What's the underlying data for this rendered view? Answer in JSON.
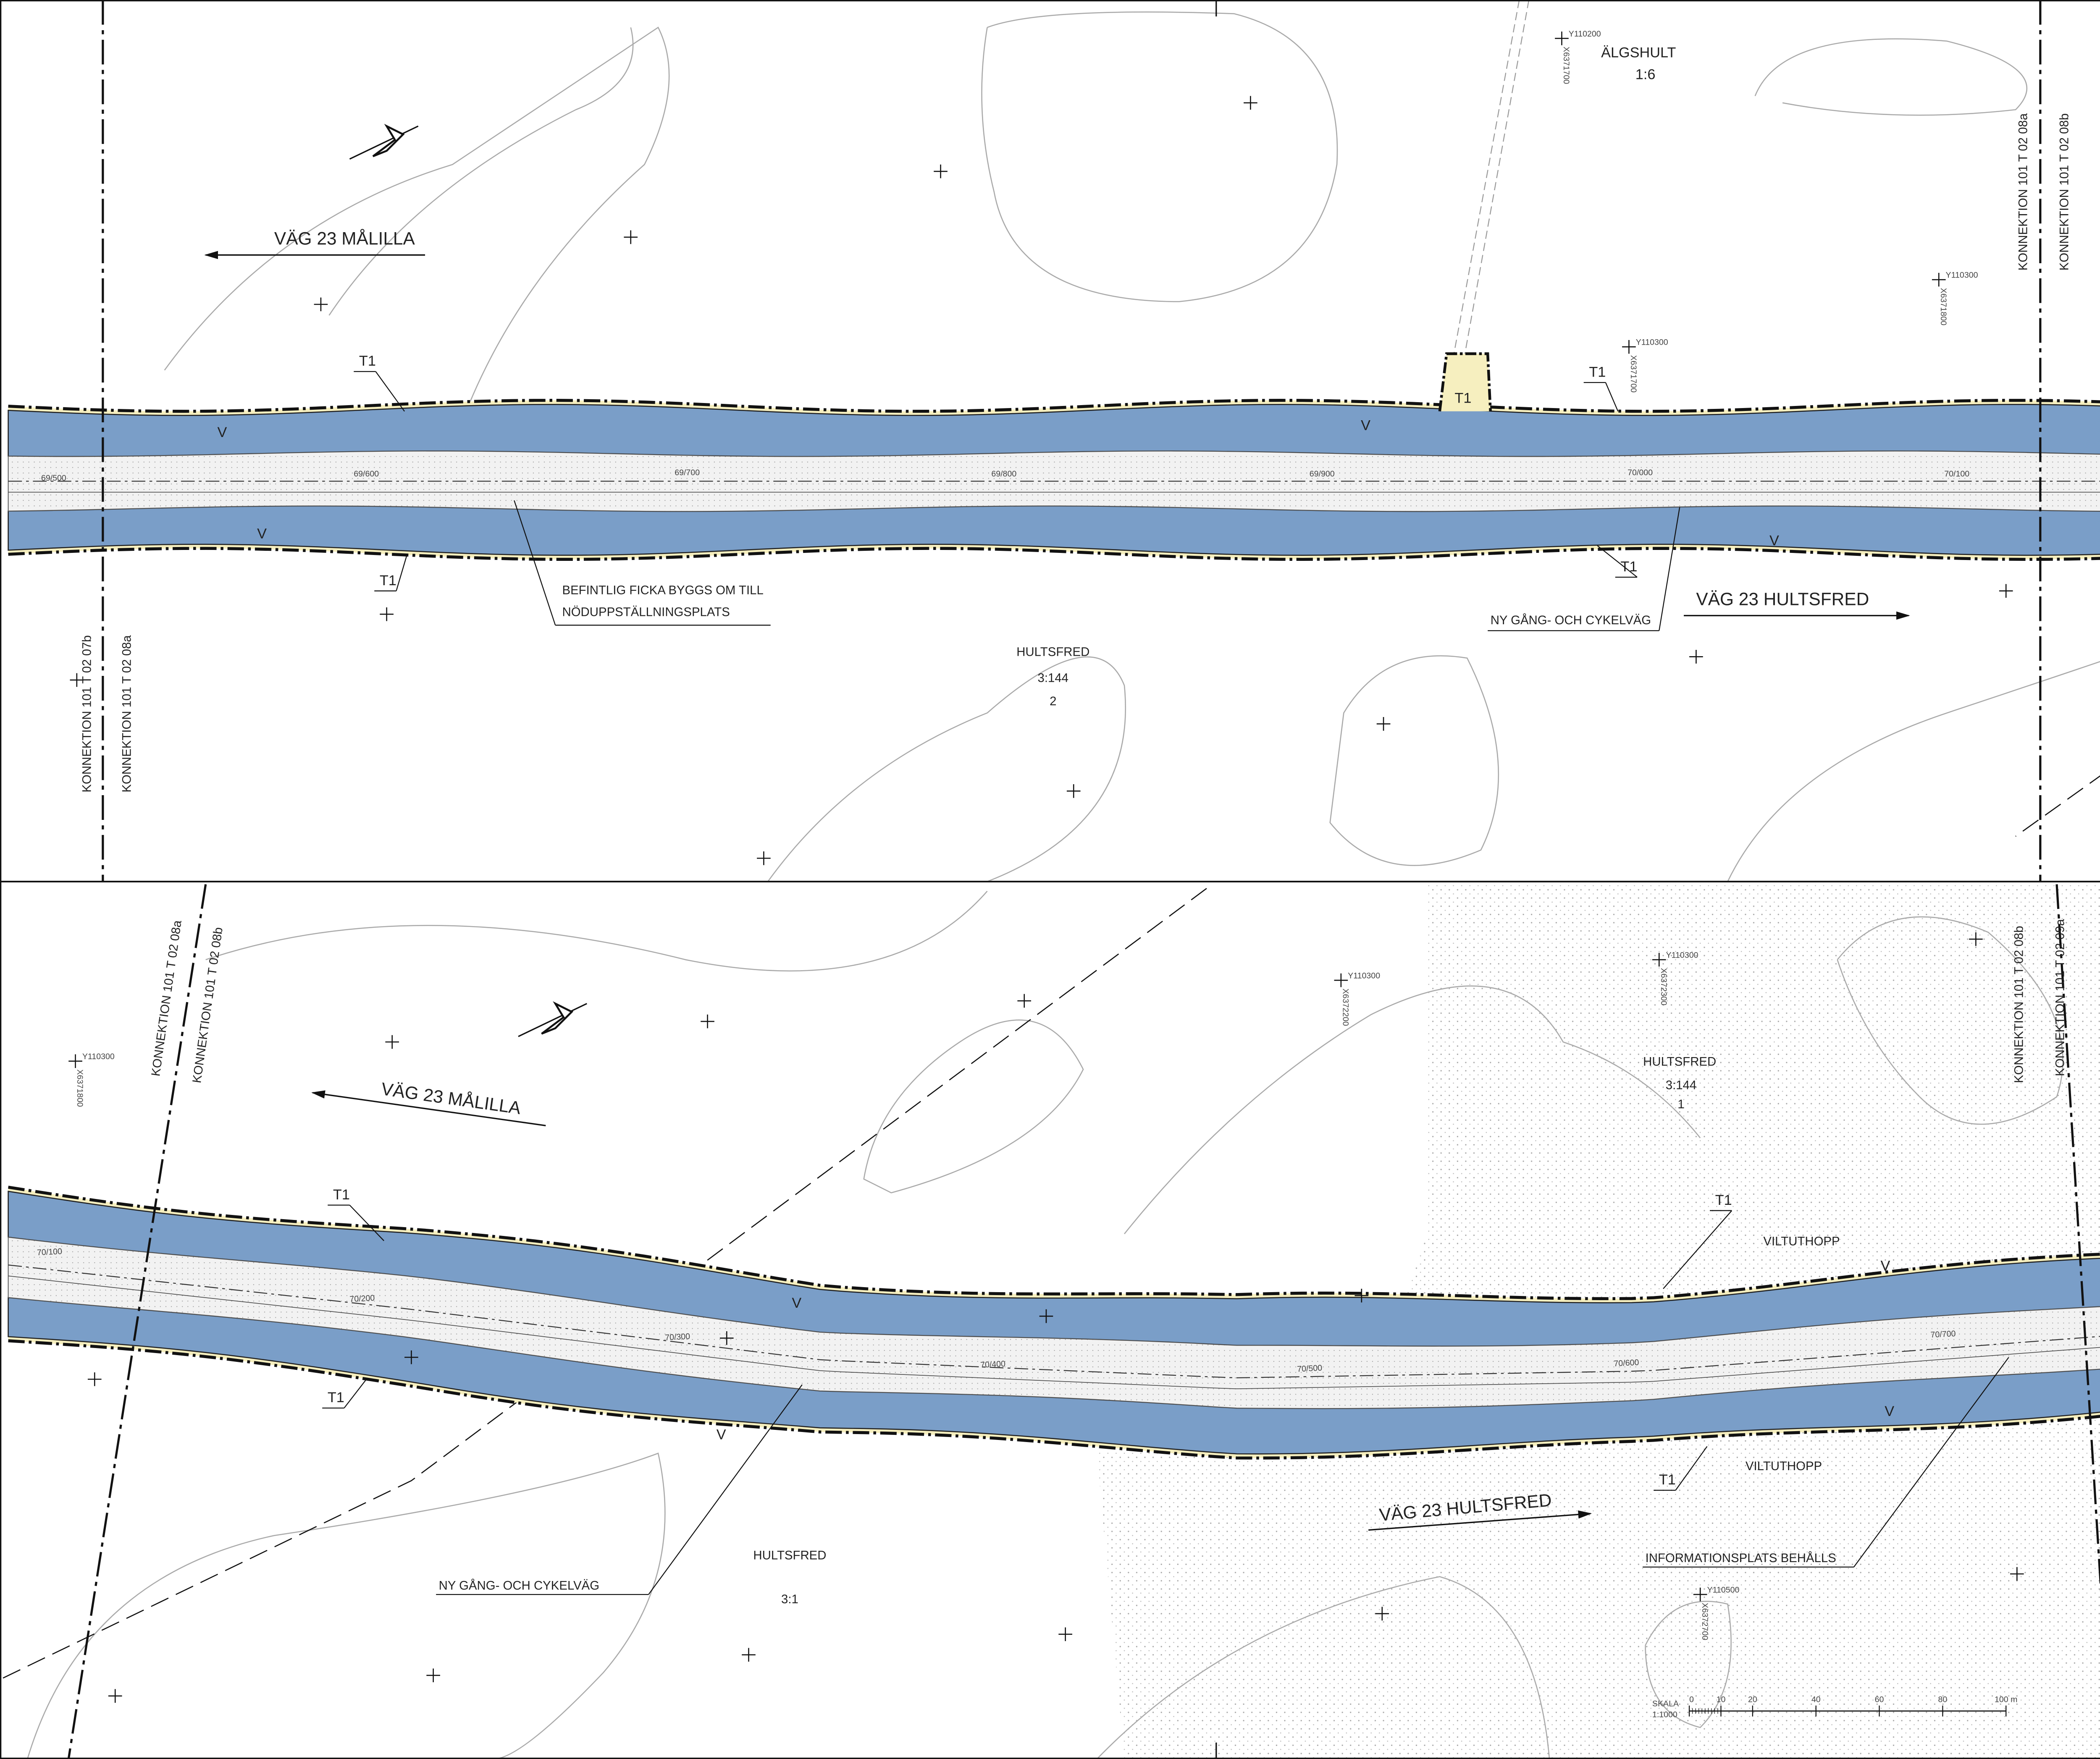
{
  "top_sheet": {
    "direction_west": "VÄG 23 MÅLILLA",
    "direction_east": "VÄG 23 HULTSFRED",
    "property_north": {
      "name": "ÄLGSHULT",
      "number": "1:6"
    },
    "property_south": {
      "name": "HULTSFRED",
      "number": "3:144",
      "sub": "2"
    },
    "coordinates": [
      {
        "y": "Y110200",
        "x": "X6371700"
      },
      {
        "y": "Y110300",
        "x": "X6371700"
      },
      {
        "y": "Y110300",
        "x": "X6371800"
      }
    ],
    "match_lines_left": [
      "KONNEKTION 101 T 02 07b",
      "KONNEKTION 101 T 02 08a"
    ],
    "match_lines_right": [
      "KONNEKTION 101 T 02 08a",
      "KONNEKTION 101 T 02 08b"
    ],
    "stations": [
      "69/500",
      "69/600",
      "69/700",
      "69/800",
      "69/900",
      "70/000",
      "70/100"
    ],
    "notes": [
      "BEFINTLIG FICKA BYGGS OM TILL",
      "NÖDUPPSTÄLLNINGSPLATS",
      "NY GÅNG- OCH CYKELVÄG"
    ],
    "markers": [
      "T1",
      "T1",
      "T1",
      "T1",
      "T1",
      "V",
      "V",
      "V",
      "V"
    ]
  },
  "bottom_sheet": {
    "direction_west": "VÄG 23 MÅLILLA",
    "direction_east": "VÄG 23 HULTSFRED",
    "property_north": {
      "name": "HULTSFRED",
      "number": "3:144",
      "sub": "1"
    },
    "property_south": {
      "name": "HULTSFRED",
      "number": "3:1"
    },
    "coordinates": [
      {
        "y": "Y110300",
        "x": "X6371800"
      },
      {
        "y": "Y110300",
        "x": "X6372200"
      },
      {
        "y": "Y110300",
        "x": "X6372300"
      },
      {
        "y": "Y110500",
        "x": "X6372700"
      }
    ],
    "match_lines_left": [
      "KONNEKTION 101 T 02 08a",
      "KONNEKTION 101 T 02 08b"
    ],
    "match_lines_right": [
      "KONNEKTION 101 T 02 08b",
      "KONNEKTION 101 T 02 09a"
    ],
    "stations": [
      "70/100",
      "70/200",
      "70/300",
      "70/400",
      "70/500",
      "70/600",
      "70/700"
    ],
    "notes": [
      "NY GÅNG- OCH CYKELVÄG",
      "INFORMATIONSPLATS BEHÅLLS",
      "VILTUTHOPP",
      "VILTUTHOPP"
    ],
    "markers": [
      "T1",
      "T1",
      "T1",
      "T1",
      "V",
      "V",
      "V",
      "V"
    ],
    "scale": {
      "title": "SKALA",
      "ratio": "1:1000",
      "ticks": [
        "0",
        "10",
        "20",
        "40",
        "60",
        "80",
        "100 m"
      ]
    }
  }
}
